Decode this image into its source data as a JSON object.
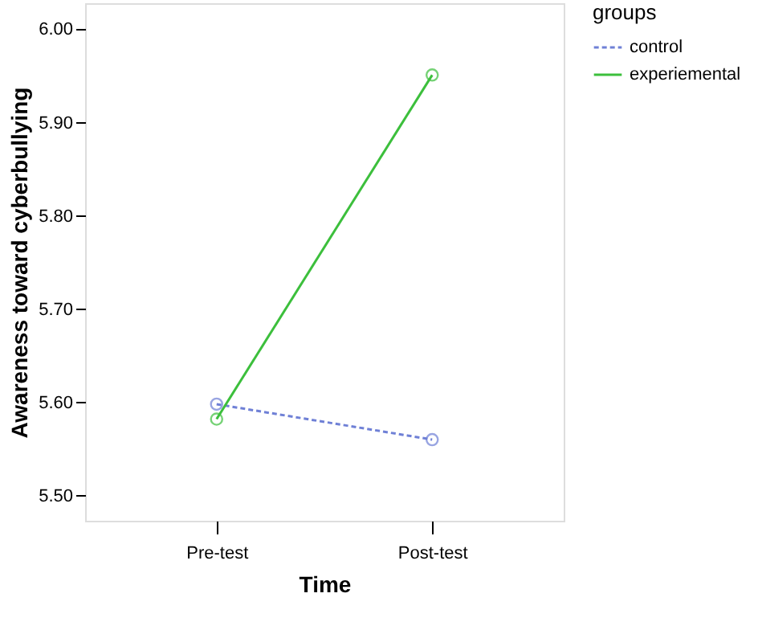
{
  "chart_data": {
    "type": "line",
    "xlabel": "Time",
    "ylabel": "Awareness toward cyberbullying",
    "legend_title": "groups",
    "categories": [
      "Pre-test",
      "Post-test"
    ],
    "series": [
      {
        "name": "control",
        "color": "#6f80d6",
        "values": [
          5.598,
          5.56
        ],
        "line_style": "dashed"
      },
      {
        "name": "experiemental",
        "color": "#3cbf3c",
        "values": [
          5.582,
          5.951
        ],
        "line_style": "solid"
      }
    ],
    "ylim": [
      5.473,
      6.028
    ],
    "yticks": [
      {
        "value": 5.5,
        "label": "5.50"
      },
      {
        "value": 5.6,
        "label": "5.60"
      },
      {
        "value": 5.7,
        "label": "5.70"
      },
      {
        "value": 5.8,
        "label": "5.80"
      },
      {
        "value": 5.9,
        "label": "5.90"
      },
      {
        "value": 6.0,
        "label": "6.00"
      }
    ],
    "marker": "circle",
    "grid": false,
    "legend": "top right"
  }
}
